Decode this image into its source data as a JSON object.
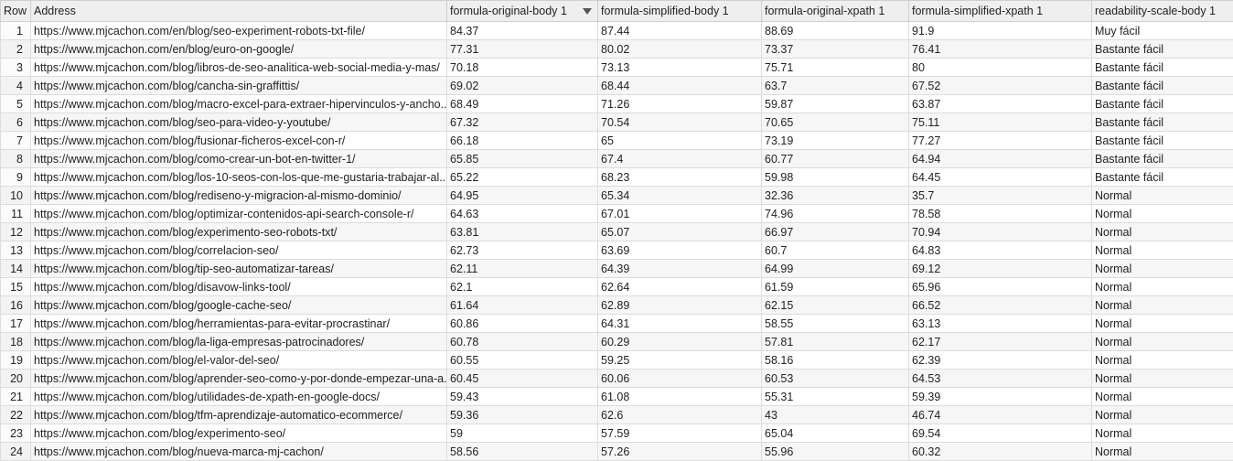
{
  "table": {
    "columns": [
      "Row",
      "Address",
      "formula-original-body 1",
      "formula-simplified-body 1",
      "formula-original-xpath 1",
      "formula-simplified-xpath 1",
      "readability-scale-body 1"
    ],
    "rows": [
      [
        "1",
        "https://www.mjcachon.com/en/blog/seo-experiment-robots-txt-file/",
        "84.37",
        "87.44",
        "88.69",
        "91.9",
        "Muy fácil"
      ],
      [
        "2",
        "https://www.mjcachon.com/en/blog/euro-on-google/",
        "77.31",
        "80.02",
        "73.37",
        "76.41",
        "Bastante fácil"
      ],
      [
        "3",
        "https://www.mjcachon.com/blog/libros-de-seo-analitica-web-social-media-y-mas/",
        "70.18",
        "73.13",
        "75.71",
        "80",
        "Bastante fácil"
      ],
      [
        "4",
        "https://www.mjcachon.com/blog/cancha-sin-graffittis/",
        "69.02",
        "68.44",
        "63.7",
        "67.52",
        "Bastante fácil"
      ],
      [
        "5",
        "https://www.mjcachon.com/blog/macro-excel-para-extraer-hipervinculos-y-ancho...",
        "68.49",
        "71.26",
        "59.87",
        "63.87",
        "Bastante fácil"
      ],
      [
        "6",
        "https://www.mjcachon.com/blog/seo-para-video-y-youtube/",
        "67.32",
        "70.54",
        "70.65",
        "75.11",
        "Bastante fácil"
      ],
      [
        "7",
        "https://www.mjcachon.com/blog/fusionar-ficheros-excel-con-r/",
        "66.18",
        "65",
        "73.19",
        "77.27",
        "Bastante fácil"
      ],
      [
        "8",
        "https://www.mjcachon.com/blog/como-crear-un-bot-en-twitter-1/",
        "65.85",
        "67.4",
        "60.77",
        "64.94",
        "Bastante fácil"
      ],
      [
        "9",
        "https://www.mjcachon.com/blog/los-10-seos-con-los-que-me-gustaria-trabajar-al...",
        "65.22",
        "68.23",
        "59.98",
        "64.45",
        "Bastante fácil"
      ],
      [
        "10",
        "https://www.mjcachon.com/blog/rediseno-y-migracion-al-mismo-dominio/",
        "64.95",
        "65.34",
        "32.36",
        "35.7",
        "Normal"
      ],
      [
        "11",
        "https://www.mjcachon.com/blog/optimizar-contenidos-api-search-console-r/",
        "64.63",
        "67.01",
        "74.96",
        "78.58",
        "Normal"
      ],
      [
        "12",
        "https://www.mjcachon.com/blog/experimento-seo-robots-txt/",
        "63.81",
        "65.07",
        "66.97",
        "70.94",
        "Normal"
      ],
      [
        "13",
        "https://www.mjcachon.com/blog/correlacion-seo/",
        "62.73",
        "63.69",
        "60.7",
        "64.83",
        "Normal"
      ],
      [
        "14",
        "https://www.mjcachon.com/blog/tip-seo-automatizar-tareas/",
        "62.11",
        "64.39",
        "64.99",
        "69.12",
        "Normal"
      ],
      [
        "15",
        "https://www.mjcachon.com/blog/disavow-links-tool/",
        "62.1",
        "62.64",
        "61.59",
        "65.96",
        "Normal"
      ],
      [
        "16",
        "https://www.mjcachon.com/blog/google-cache-seo/",
        "61.64",
        "62.89",
        "62.15",
        "66.52",
        "Normal"
      ],
      [
        "17",
        "https://www.mjcachon.com/blog/herramientas-para-evitar-procrastinar/",
        "60.86",
        "64.31",
        "58.55",
        "63.13",
        "Normal"
      ],
      [
        "18",
        "https://www.mjcachon.com/blog/la-liga-empresas-patrocinadores/",
        "60.78",
        "60.29",
        "57.81",
        "62.17",
        "Normal"
      ],
      [
        "19",
        "https://www.mjcachon.com/blog/el-valor-del-seo/",
        "60.55",
        "59.25",
        "58.16",
        "62.39",
        "Normal"
      ],
      [
        "20",
        "https://www.mjcachon.com/blog/aprender-seo-como-y-por-donde-empezar-una-a...",
        "60.45",
        "60.06",
        "60.53",
        "64.53",
        "Normal"
      ],
      [
        "21",
        "https://www.mjcachon.com/blog/utilidades-de-xpath-en-google-docs/",
        "59.43",
        "61.08",
        "55.31",
        "59.39",
        "Normal"
      ],
      [
        "22",
        "https://www.mjcachon.com/blog/tfm-aprendizaje-automatico-ecommerce/",
        "59.36",
        "62.6",
        "43",
        "46.74",
        "Normal"
      ],
      [
        "23",
        "https://www.mjcachon.com/blog/experimento-seo/",
        "59",
        "57.59",
        "65.04",
        "69.54",
        "Normal"
      ],
      [
        "24",
        "https://www.mjcachon.com/blog/nueva-marca-mj-cachon/",
        "58.56",
        "57.26",
        "55.96",
        "60.32",
        "Normal"
      ]
    ]
  }
}
